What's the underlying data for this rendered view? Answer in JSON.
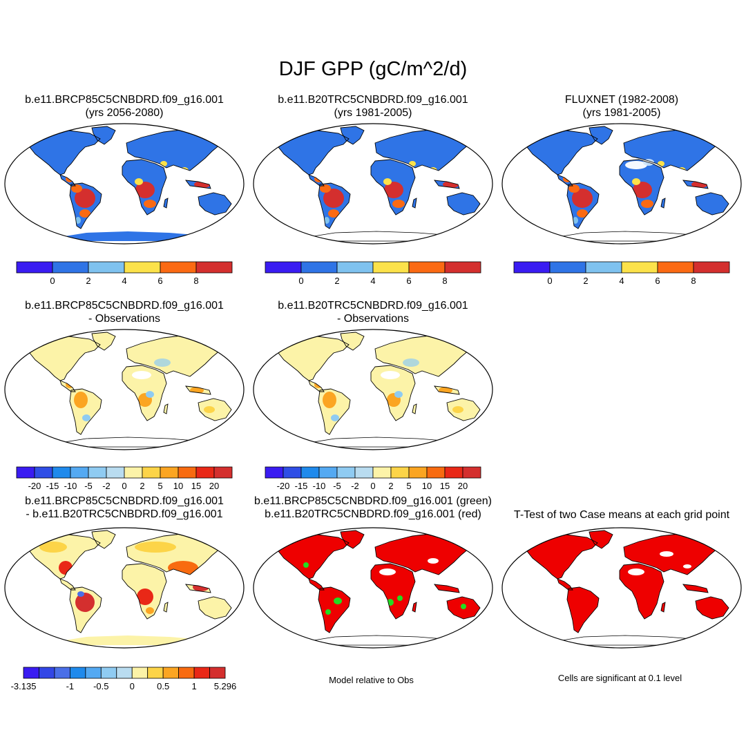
{
  "title": "DJF GPP (gC/m^2/d)",
  "colors": {
    "abs": [
      "#3a1cf2",
      "#2f74e6",
      "#7fc2ef",
      "#fce24a",
      "#fb6a13",
      "#d42f2e"
    ],
    "diff": [
      "#3a1cf2",
      "#2f4ee6",
      "#1f8aec",
      "#54a9f2",
      "#8fcbf2",
      "#b9dcf0",
      "#fcf3a8",
      "#fcd448",
      "#fba522",
      "#f86b10",
      "#e92817",
      "#d42f2e"
    ],
    "modeldiff": [
      "#3a1cf2",
      "#3246e6",
      "#4a6fe8",
      "#1f8aec",
      "#54a9f2",
      "#8fcbf2",
      "#b9dcf0",
      "#fcf3a8",
      "#fcd448",
      "#fba522",
      "#f86b10",
      "#e92817",
      "#d42f2e"
    ],
    "land_low": "#2f74e6",
    "sig_red": "#ee0000",
    "sig_green": "#22dd22"
  },
  "panels": [
    {
      "id": "p1",
      "line1": "b.e11.BRCP85C5CNBDRD.f09_g16.001",
      "line2": "(yrs 2056-2080)",
      "kind": "abs",
      "antarctica": true
    },
    {
      "id": "p2",
      "line1": "b.e11.B20TRC5CNBDRD.f09_g16.001",
      "line2": "(yrs 1981-2005)",
      "kind": "abs",
      "antarctica": false
    },
    {
      "id": "p3",
      "line1": "FLUXNET (1982-2008)",
      "line2": "(yrs 1981-2005)",
      "kind": "abs",
      "antarctica": false
    },
    {
      "id": "p4",
      "line1": "b.e11.BRCP85C5CNBDRD.f09_g16.001",
      "line2": "- Observations",
      "kind": "diffobs",
      "antarctica": false
    },
    {
      "id": "p5",
      "line1": "b.e11.B20TRC5CNBDRD.f09_g16.001",
      "line2": "- Observations",
      "kind": "diffobs",
      "antarctica": false
    },
    {
      "id": "p7",
      "line1": "b.e11.BRCP85C5CNBDRD.f09_g16.001",
      "line2": "- b.e11.B20TRC5CNBDRD.f09_g16.001",
      "kind": "modeldiff",
      "antarctica": true
    },
    {
      "id": "p8",
      "line1": "b.e11.BRCP85C5CNBDRD.f09_g16.001 (green)",
      "line2": "b.e11.B20TRC5CNBDRD.f09_g16.001 (red)",
      "kind": "relobs",
      "antarctica": false
    },
    {
      "id": "p9",
      "line1": "T-Test of two Case means at each grid point",
      "line2": "",
      "kind": "ttest",
      "antarctica": false
    }
  ],
  "colorbars": {
    "abs_ticks": [
      "0",
      "2",
      "4",
      "6",
      "8"
    ],
    "diff_ticks": [
      "-20",
      "-15",
      "-10",
      "-5",
      "-2",
      "0",
      "2",
      "5",
      "10",
      "15",
      "20"
    ],
    "modeldiff_ticks": [
      "-3.135",
      "-1",
      "-0.5",
      "0",
      "0.5",
      "1",
      "5.296"
    ]
  },
  "notes": {
    "relobs": "Model relative to Obs",
    "ttest": "Cells are significant at 0.1 level"
  }
}
